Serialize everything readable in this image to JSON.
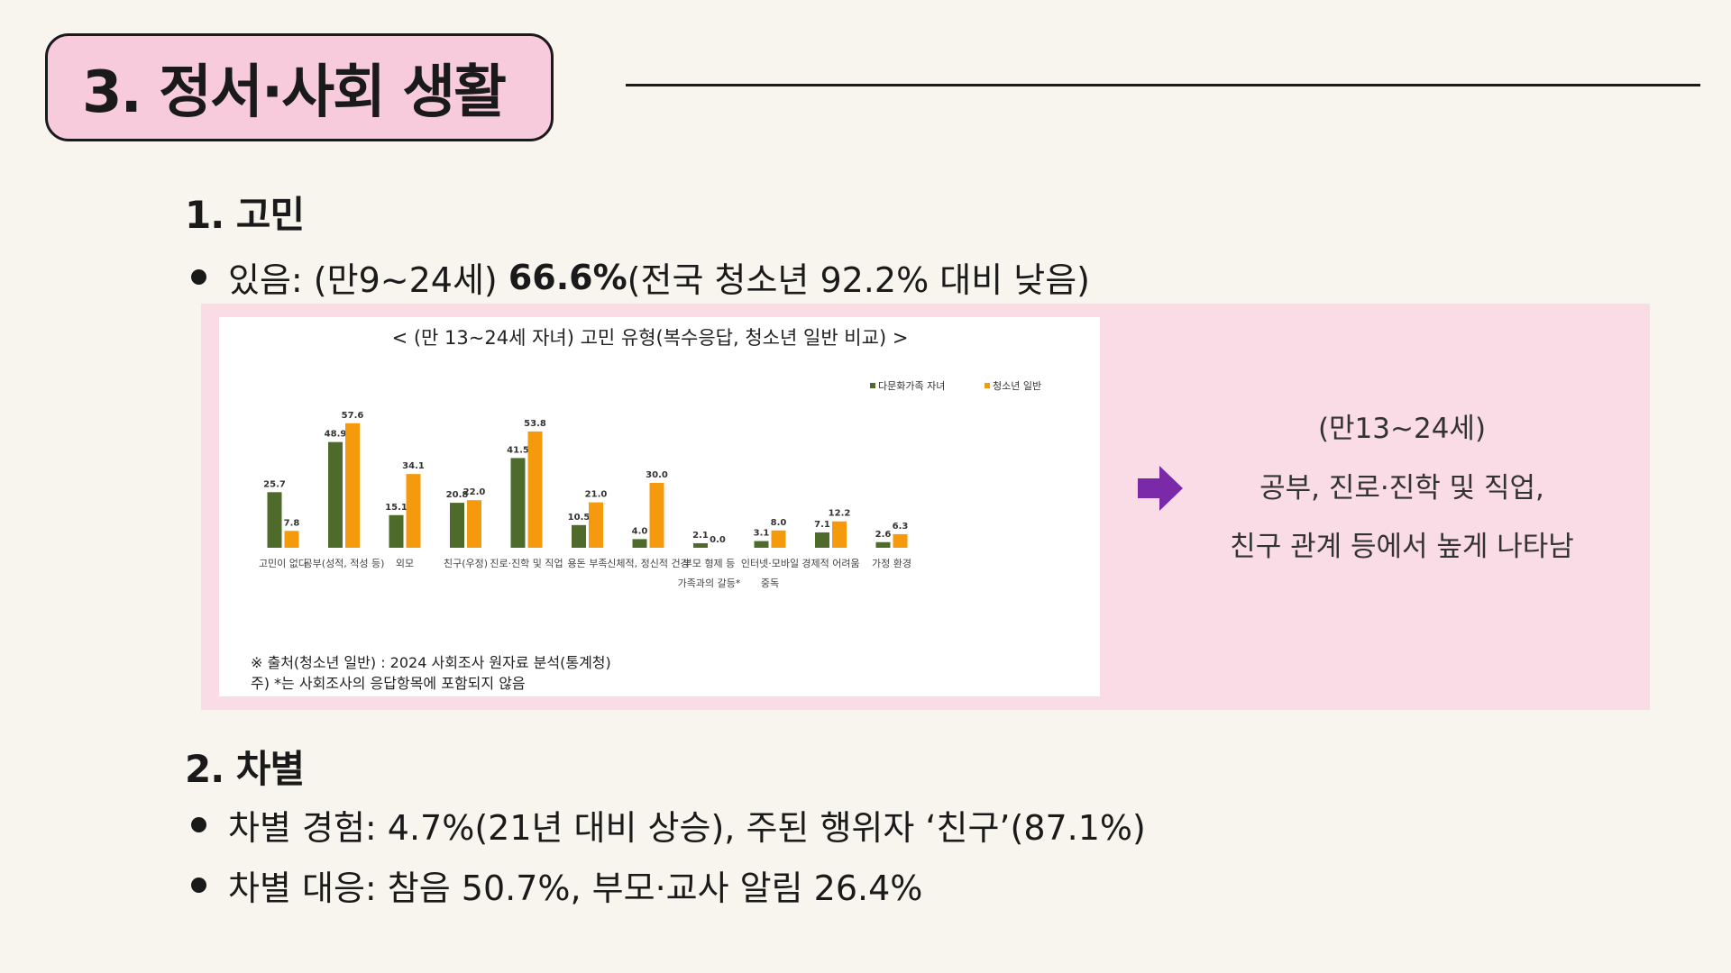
{
  "header": {
    "title": "3. 정서·사회 생활"
  },
  "section1": {
    "heading": "1. 고민",
    "bullet_pre": "있음: (만9~24세) ",
    "bullet_bold": "66.6%",
    "bullet_post": "(전국 청소년 92.2% 대비 낮음)"
  },
  "side_note": {
    "line1": "(만13~24세)",
    "line2": "공부, 진로·진학 및 직업,",
    "line3": "친구 관계 등에서 높게 나타남"
  },
  "section2": {
    "heading": "2. 차별",
    "bullet1": "차별 경험: 4.7%(21년 대비 상승), 주된 행위자 ‘친구’(87.1%)",
    "bullet2": "차별 대응: 참음 50.7%, 부모·교사 알림 26.4%"
  },
  "chart_data": {
    "type": "bar",
    "title": "< (만 13~24세 자녀) 고민 유형(복수응답, 청소년 일반 비교) >",
    "categories": [
      "고민이 없다",
      "공부(성적, 적성 등)",
      "외모",
      "친구(우정)",
      "진로·진학 및 직업",
      "용돈 부족",
      "신체적, 정신적 건강",
      "부모 형제 등 가족과의 갈등*",
      "인터넷·모바일 중독",
      "경제적 어려움",
      "가정 환경"
    ],
    "category_lines": [
      [
        "고민이 없다"
      ],
      [
        "공부(성적, 적성 등)"
      ],
      [
        "외모"
      ],
      [
        "친구(우정)"
      ],
      [
        "진로·진학 및 직업"
      ],
      [
        "용돈 부족"
      ],
      [
        "신체적, 정신적 건강"
      ],
      [
        "부모 형제 등",
        "가족과의 갈등*"
      ],
      [
        "인터넷·모바일",
        "중독"
      ],
      [
        "경제적 어려움"
      ],
      [
        "가정 환경"
      ]
    ],
    "series": [
      {
        "name": "다문화가족 자녀",
        "color": "#4e6b2c",
        "values": [
          25.7,
          48.9,
          15.1,
          20.8,
          41.5,
          10.5,
          4.0,
          2.1,
          3.1,
          7.1,
          2.6
        ]
      },
      {
        "name": "청소년 일반",
        "color": "#f59a0c",
        "values": [
          7.8,
          57.6,
          34.1,
          22.0,
          53.8,
          21.0,
          30.0,
          0.0,
          8.0,
          12.2,
          6.3
        ]
      }
    ],
    "legend": "top-right",
    "grid": false,
    "ylim": [
      0,
      60
    ],
    "notes": [
      "※ 출처(청소년 일반) : 2024 사회조사 원자료 분석(통계청)",
      "주) *는 사회조사의 응답항목에 포함되지 않음"
    ]
  },
  "colors": {
    "title_bg": "#f7cbdc",
    "panel_bg": "#f9dce6",
    "page_bg": "#f8f4ee",
    "arrow": "#7a2aa8"
  },
  "icons": {
    "arrow": "right-arrow-icon",
    "bullet": "bullet-dot-icon"
  }
}
